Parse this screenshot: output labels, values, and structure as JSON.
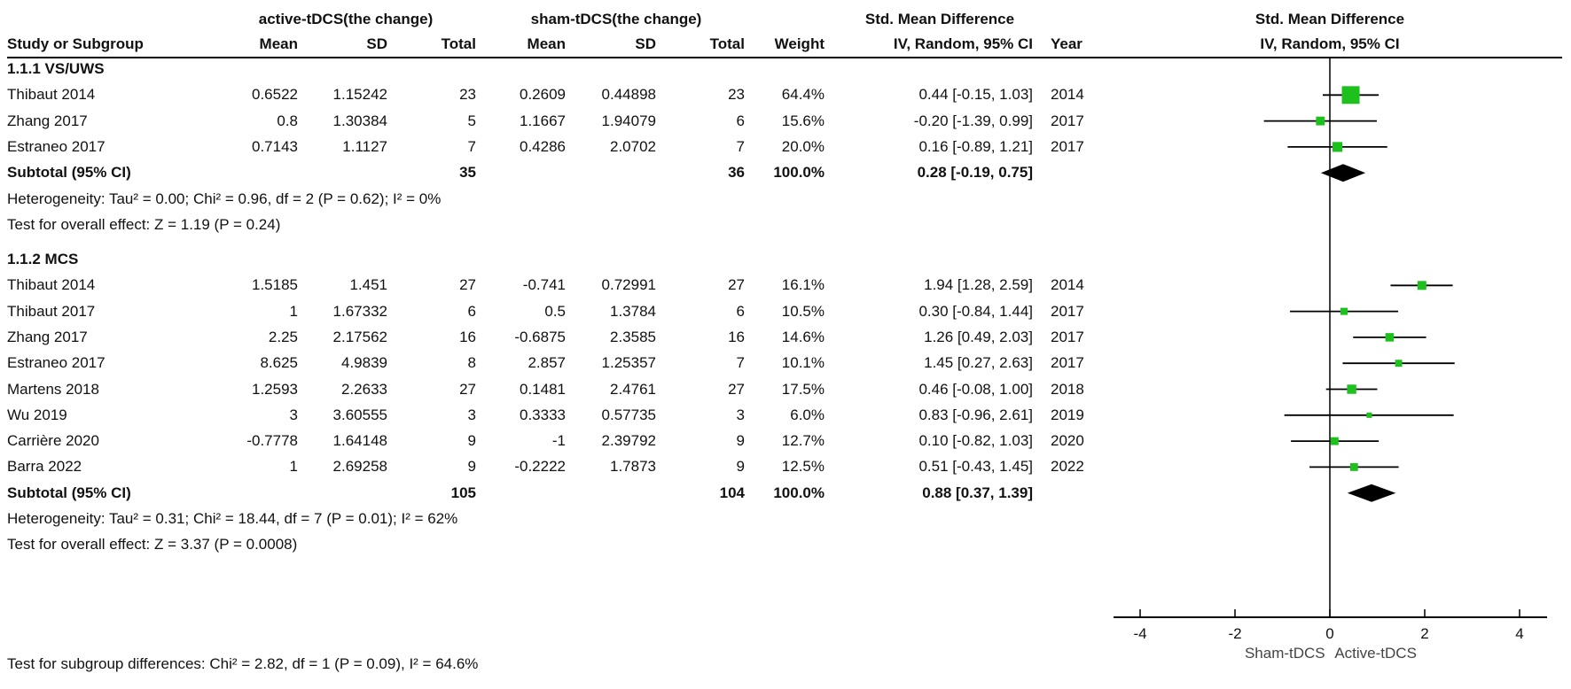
{
  "header": {
    "group_active": "active-tDCS(the change)",
    "group_sham": "sham-tDCS(the change)",
    "smd_title": "Std. Mean Difference",
    "plot_title": "Std. Mean Difference",
    "col_study": "Study or Subgroup",
    "col_mean": "Mean",
    "col_sd": "SD",
    "col_total": "Total",
    "col_weight": "Weight",
    "col_ci": "IV, Random, 95% CI",
    "col_year": "Year",
    "plot_subtitle": "IV, Random, 95% CI"
  },
  "subgroups": [
    {
      "title": "1.1.1 VS/UWS",
      "studies": [
        {
          "study": "Thibaut 2014",
          "a_mean": "0.6522",
          "a_sd": "1.15242",
          "a_total": "23",
          "s_mean": "0.2609",
          "s_sd": "0.44898",
          "s_total": "23",
          "weight": "64.4%",
          "ci": "0.44 [-0.15, 1.03]",
          "year": "2014",
          "est": 0.44,
          "lo": -0.15,
          "hi": 1.03
        },
        {
          "study": "Zhang 2017",
          "a_mean": "0.8",
          "a_sd": "1.30384",
          "a_total": "5",
          "s_mean": "1.1667",
          "s_sd": "1.94079",
          "s_total": "6",
          "weight": "15.6%",
          "ci": "-0.20 [-1.39, 0.99]",
          "year": "2017",
          "est": -0.2,
          "lo": -1.39,
          "hi": 0.99
        },
        {
          "study": "Estraneo 2017",
          "a_mean": "0.7143",
          "a_sd": "1.1127",
          "a_total": "7",
          "s_mean": "0.4286",
          "s_sd": "2.0702",
          "s_total": "7",
          "weight": "20.0%",
          "ci": "0.16 [-0.89, 1.21]",
          "year": "2017",
          "est": 0.16,
          "lo": -0.89,
          "hi": 1.21
        }
      ],
      "subtotal": {
        "label": "Subtotal (95% CI)",
        "a_total": "35",
        "s_total": "36",
        "weight": "100.0%",
        "ci": "0.28 [-0.19, 0.75]",
        "est": 0.28,
        "lo": -0.19,
        "hi": 0.75
      },
      "heterogeneity": "Heterogeneity: Tau² = 0.00; Chi² = 0.96, df = 2 (P = 0.62); I² = 0%",
      "overall": "Test for overall effect: Z = 1.19 (P = 0.24)"
    },
    {
      "title": "1.1.2 MCS",
      "studies": [
        {
          "study": "Thibaut 2014",
          "a_mean": "1.5185",
          "a_sd": "1.451",
          "a_total": "27",
          "s_mean": "-0.741",
          "s_sd": "0.72991",
          "s_total": "27",
          "weight": "16.1%",
          "ci": "1.94 [1.28, 2.59]",
          "year": "2014",
          "est": 1.94,
          "lo": 1.28,
          "hi": 2.59
        },
        {
          "study": "Thibaut 2017",
          "a_mean": "1",
          "a_sd": "1.67332",
          "a_total": "6",
          "s_mean": "0.5",
          "s_sd": "1.3784",
          "s_total": "6",
          "weight": "10.5%",
          "ci": "0.30 [-0.84, 1.44]",
          "year": "2017",
          "est": 0.3,
          "lo": -0.84,
          "hi": 1.44
        },
        {
          "study": "Zhang 2017",
          "a_mean": "2.25",
          "a_sd": "2.17562",
          "a_total": "16",
          "s_mean": "-0.6875",
          "s_sd": "2.3585",
          "s_total": "16",
          "weight": "14.6%",
          "ci": "1.26 [0.49, 2.03]",
          "year": "2017",
          "est": 1.26,
          "lo": 0.49,
          "hi": 2.03
        },
        {
          "study": "Estraneo 2017",
          "a_mean": "8.625",
          "a_sd": "4.9839",
          "a_total": "8",
          "s_mean": "2.857",
          "s_sd": "1.25357",
          "s_total": "7",
          "weight": "10.1%",
          "ci": "1.45 [0.27, 2.63]",
          "year": "2017",
          "est": 1.45,
          "lo": 0.27,
          "hi": 2.63
        },
        {
          "study": "Martens 2018",
          "a_mean": "1.2593",
          "a_sd": "2.2633",
          "a_total": "27",
          "s_mean": "0.1481",
          "s_sd": "2.4761",
          "s_total": "27",
          "weight": "17.5%",
          "ci": "0.46 [-0.08, 1.00]",
          "year": "2018",
          "est": 0.46,
          "lo": -0.08,
          "hi": 1.0
        },
        {
          "study": "Wu 2019",
          "a_mean": "3",
          "a_sd": "3.60555",
          "a_total": "3",
          "s_mean": "0.3333",
          "s_sd": "0.57735",
          "s_total": "3",
          "weight": "6.0%",
          "ci": "0.83 [-0.96, 2.61]",
          "year": "2019",
          "est": 0.83,
          "lo": -0.96,
          "hi": 2.61
        },
        {
          "study": "Carrière 2020",
          "a_mean": "-0.7778",
          "a_sd": "1.64148",
          "a_total": "9",
          "s_mean": "-1",
          "s_sd": "2.39792",
          "s_total": "9",
          "weight": "12.7%",
          "ci": "0.10 [-0.82, 1.03]",
          "year": "2020",
          "est": 0.1,
          "lo": -0.82,
          "hi": 1.03
        },
        {
          "study": "Barra 2022",
          "a_mean": "1",
          "a_sd": "2.69258",
          "a_total": "9",
          "s_mean": "-0.2222",
          "s_sd": "1.7873",
          "s_total": "9",
          "weight": "12.5%",
          "ci": "0.51 [-0.43, 1.45]",
          "year": "2022",
          "est": 0.51,
          "lo": -0.43,
          "hi": 1.45
        }
      ],
      "subtotal": {
        "label": "Subtotal (95% CI)",
        "a_total": "105",
        "s_total": "104",
        "weight": "100.0%",
        "ci": "0.88 [0.37, 1.39]",
        "est": 0.88,
        "lo": 0.37,
        "hi": 1.39
      },
      "heterogeneity": "Heterogeneity: Tau² = 0.31; Chi² = 18.44, df = 7 (P = 0.01); I² = 62%",
      "overall": "Test for overall effect: Z = 3.37 (P = 0.0008)"
    }
  ],
  "footer": {
    "subgroup_test": "Test for subgroup differences: Chi² = 2.82, df = 1 (P = 0.09), I² = 64.6%"
  },
  "axis": {
    "ticks": [
      -4,
      -2,
      0,
      2,
      4
    ],
    "tick_labels": [
      "-4",
      "-2",
      "0",
      "2",
      "4"
    ],
    "left_label": "Sham-tDCS",
    "right_label": "Active-tDCS"
  },
  "colors": {
    "square": "#1ec01e",
    "diamond": "#000000",
    "line": "#000000"
  },
  "chart_data": {
    "type": "forest",
    "title": "Std. Mean Difference — IV, Random, 95% CI",
    "xlabel": "Sham-tDCS ← → Active-tDCS",
    "xlim": [
      -4.5,
      4.5
    ],
    "xticks": [
      -4,
      -2,
      0,
      2,
      4
    ],
    "series": [
      {
        "name": "1.1.1 VS/UWS",
        "points": [
          {
            "label": "Thibaut 2014",
            "est": 0.44,
            "lo": -0.15,
            "hi": 1.03,
            "weight": 64.4
          },
          {
            "label": "Zhang 2017",
            "est": -0.2,
            "lo": -1.39,
            "hi": 0.99,
            "weight": 15.6
          },
          {
            "label": "Estraneo 2017",
            "est": 0.16,
            "lo": -0.89,
            "hi": 1.21,
            "weight": 20.0
          }
        ],
        "pooled": {
          "est": 0.28,
          "lo": -0.19,
          "hi": 0.75
        }
      },
      {
        "name": "1.1.2 MCS",
        "points": [
          {
            "label": "Thibaut 2014",
            "est": 1.94,
            "lo": 1.28,
            "hi": 2.59,
            "weight": 16.1
          },
          {
            "label": "Thibaut 2017",
            "est": 0.3,
            "lo": -0.84,
            "hi": 1.44,
            "weight": 10.5
          },
          {
            "label": "Zhang 2017",
            "est": 1.26,
            "lo": 0.49,
            "hi": 2.03,
            "weight": 14.6
          },
          {
            "label": "Estraneo 2017",
            "est": 1.45,
            "lo": 0.27,
            "hi": 2.63,
            "weight": 10.1
          },
          {
            "label": "Martens 2018",
            "est": 0.46,
            "lo": -0.08,
            "hi": 1.0,
            "weight": 17.5
          },
          {
            "label": "Wu 2019",
            "est": 0.83,
            "lo": -0.96,
            "hi": 2.61,
            "weight": 6.0
          },
          {
            "label": "Carrière 2020",
            "est": 0.1,
            "lo": -0.82,
            "hi": 1.03,
            "weight": 12.7
          },
          {
            "label": "Barra 2022",
            "est": 0.51,
            "lo": -0.43,
            "hi": 1.45,
            "weight": 12.5
          }
        ],
        "pooled": {
          "est": 0.88,
          "lo": 0.37,
          "hi": 1.39
        }
      }
    ]
  }
}
